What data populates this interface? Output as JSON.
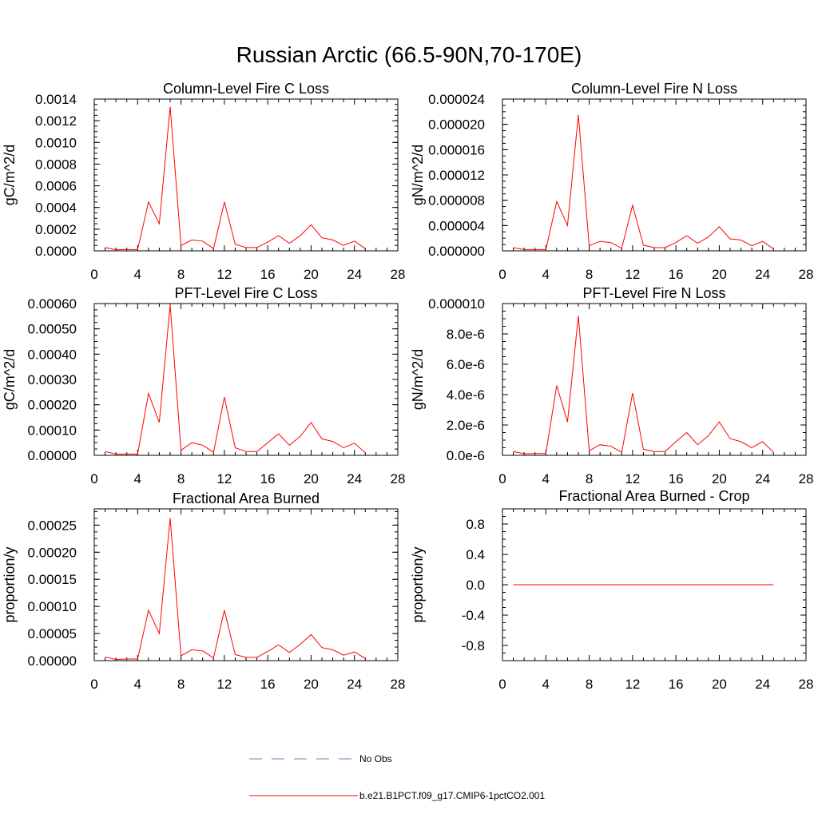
{
  "figure": {
    "title": "Russian Arctic (66.5-90N,70-170E)"
  },
  "legend": {
    "entries": [
      {
        "label": "No Obs",
        "color": "#7b7bb8",
        "style": "dashed"
      },
      {
        "label": "b.e21.B1PCT.f09_g17.CMIP6-1pctCO2.001",
        "color": "#ff0000",
        "style": "solid"
      }
    ]
  },
  "chart_data": [
    {
      "type": "line",
      "title": "Column-Level Fire C Loss",
      "ylabel": "gC/m^2/d",
      "xlim": [
        0,
        28
      ],
      "ylim": [
        0,
        0.0014
      ],
      "xticks": [
        "0",
        "4",
        "8",
        "12",
        "16",
        "20",
        "24",
        "28"
      ],
      "yticks": [
        "0.0000",
        "0.0002",
        "0.0004",
        "0.0006",
        "0.0008",
        "0.0010",
        "0.0012",
        "0.0014"
      ],
      "x": [
        1,
        2,
        3,
        4,
        5,
        6,
        7,
        8,
        9,
        10,
        11,
        12,
        13,
        14,
        15,
        16,
        17,
        18,
        19,
        20,
        21,
        22,
        23,
        24,
        25
      ],
      "series": [
        {
          "name": "b.e21.B1PCT.f09_g17.CMIP6-1pctCO2.001",
          "color": "#ff0000",
          "values": [
            3e-05,
            1e-05,
            1.2e-05,
            1.2e-05,
            0.00045,
            0.00025,
            0.00133,
            5e-05,
            0.0001,
            9e-05,
            2e-05,
            0.00045,
            6e-05,
            3e-05,
            3e-05,
            8e-05,
            0.00014,
            7e-05,
            0.00014,
            0.00024,
            0.00012,
            0.0001,
            5e-05,
            9e-05,
            2e-05
          ]
        }
      ]
    },
    {
      "type": "line",
      "title": "Column-Level Fire N Loss",
      "ylabel": "gN/m^2/d",
      "xlim": [
        0,
        28
      ],
      "ylim": [
        0,
        2.4e-05
      ],
      "xticks": [
        "0",
        "4",
        "8",
        "12",
        "16",
        "20",
        "24",
        "28"
      ],
      "yticks": [
        "0.000000",
        "0.000004",
        "0.000008",
        "0.000012",
        "0.000016",
        "0.000020",
        "0.000024"
      ],
      "x": [
        1,
        2,
        3,
        4,
        5,
        6,
        7,
        8,
        9,
        10,
        11,
        12,
        13,
        14,
        15,
        16,
        17,
        18,
        19,
        20,
        21,
        22,
        23,
        24,
        25
      ],
      "series": [
        {
          "name": "b.e21.B1PCT.f09_g17.CMIP6-1pctCO2.001",
          "color": "#ff0000",
          "values": [
            5e-07,
            2e-07,
            2e-07,
            2e-07,
            7.8e-06,
            4e-06,
            2.15e-05,
            8e-07,
            1.5e-06,
            1.3e-06,
            4e-07,
            7.2e-06,
            9e-07,
            5e-07,
            5e-07,
            1.3e-06,
            2.4e-06,
            1.2e-06,
            2.2e-06,
            3.8e-06,
            1.9e-06,
            1.7e-06,
            8e-07,
            1.5e-06,
            3e-07
          ]
        }
      ]
    },
    {
      "type": "line",
      "title": "PFT-Level Fire C Loss",
      "ylabel": "gC/m^2/d",
      "xlim": [
        0,
        28
      ],
      "ylim": [
        0,
        0.0006
      ],
      "xticks": [
        "0",
        "4",
        "8",
        "12",
        "16",
        "20",
        "24",
        "28"
      ],
      "yticks": [
        "0.00000",
        "0.00010",
        "0.00020",
        "0.00030",
        "0.00040",
        "0.00050",
        "0.00060"
      ],
      "x": [
        1,
        2,
        3,
        4,
        5,
        6,
        7,
        8,
        9,
        10,
        11,
        12,
        13,
        14,
        15,
        16,
        17,
        18,
        19,
        20,
        21,
        22,
        23,
        24,
        25
      ],
      "series": [
        {
          "name": "b.e21.B1PCT.f09_g17.CMIP6-1pctCO2.001",
          "color": "#ff0000",
          "values": [
            1.5e-05,
            5e-06,
            5e-06,
            5e-06,
            0.000245,
            0.00013,
            0.000595,
            2e-05,
            5e-05,
            4e-05,
            1.2e-05,
            0.00023,
            3e-05,
            1.5e-05,
            1.5e-05,
            5e-05,
            8.5e-05,
            4e-05,
            7.5e-05,
            0.00013,
            6.5e-05,
            5.5e-05,
            3e-05,
            4.8e-05,
            1e-05
          ]
        }
      ]
    },
    {
      "type": "line",
      "title": "PFT-Level Fire N Loss",
      "ylabel": "gN/m^2/d",
      "xlim": [
        0,
        28
      ],
      "ylim": [
        0,
        1e-05
      ],
      "xticks": [
        "0",
        "4",
        "8",
        "12",
        "16",
        "20",
        "24",
        "28"
      ],
      "yticks": [
        "0.0e-6",
        "2.0e-6",
        "4.0e-6",
        "6.0e-6",
        "8.0e-6",
        "0.000010"
      ],
      "x": [
        1,
        2,
        3,
        4,
        5,
        6,
        7,
        8,
        9,
        10,
        11,
        12,
        13,
        14,
        15,
        16,
        17,
        18,
        19,
        20,
        21,
        22,
        23,
        24,
        25
      ],
      "series": [
        {
          "name": "b.e21.B1PCT.f09_g17.CMIP6-1pctCO2.001",
          "color": "#ff0000",
          "values": [
            2.5e-07,
            1e-07,
            1.2e-07,
            1.2e-07,
            4.6e-06,
            2.2e-06,
            9.2e-06,
            3e-07,
            7e-07,
            6e-07,
            2e-07,
            4.1e-06,
            4e-07,
            2.5e-07,
            2.5e-07,
            9e-07,
            1.5e-06,
            7e-07,
            1.3e-06,
            2.2e-06,
            1.1e-06,
            9e-07,
            5e-07,
            9e-07,
            2e-07
          ]
        }
      ]
    },
    {
      "type": "line",
      "title": "Fractional Area Burned",
      "ylabel": "proportion/y",
      "xlim": [
        0,
        28
      ],
      "ylim": [
        0,
        0.00028
      ],
      "xticks": [
        "0",
        "4",
        "8",
        "12",
        "16",
        "20",
        "24",
        "28"
      ],
      "yticks": [
        "0.00000",
        "0.00005",
        "0.00010",
        "0.00015",
        "0.00020",
        "0.00025"
      ],
      "ytick_values": [
        0,
        5e-05,
        0.0001,
        0.00015,
        0.0002,
        0.00025
      ],
      "x": [
        1,
        2,
        3,
        4,
        5,
        6,
        7,
        8,
        9,
        10,
        11,
        12,
        13,
        14,
        15,
        16,
        17,
        18,
        19,
        20,
        21,
        22,
        23,
        24,
        25
      ],
      "series": [
        {
          "name": "b.e21.B1PCT.f09_g17.CMIP6-1pctCO2.001",
          "color": "#ff0000",
          "values": [
            7e-06,
            2e-06,
            3e-06,
            3e-06,
            9.3e-05,
            5e-05,
            0.000263,
            9e-06,
            2e-05,
            1.8e-05,
            5e-06,
            9.3e-05,
            1.1e-05,
            6e-06,
            6e-06,
            1.7e-05,
            2.9e-05,
            1.5e-05,
            3e-05,
            4.8e-05,
            2.4e-05,
            2e-05,
            1e-05,
            1.6e-05,
            4e-06
          ]
        }
      ]
    },
    {
      "type": "line",
      "title": "Fractional Area Burned - Crop",
      "ylabel": "proportion/y",
      "xlim": [
        0,
        28
      ],
      "ylim": [
        -1,
        1
      ],
      "xticks": [
        "0",
        "4",
        "8",
        "12",
        "16",
        "20",
        "24",
        "28"
      ],
      "yticks": [
        "-0.8",
        "-0.4",
        "0.0",
        "0.4",
        "0.8"
      ],
      "ytick_values": [
        -0.8,
        -0.4,
        0,
        0.4,
        0.8
      ],
      "x": [
        1,
        25
      ],
      "series": [
        {
          "name": "b.e21.B1PCT.f09_g17.CMIP6-1pctCO2.001",
          "color": "#ff0000",
          "values": [
            0,
            0
          ]
        }
      ]
    }
  ]
}
